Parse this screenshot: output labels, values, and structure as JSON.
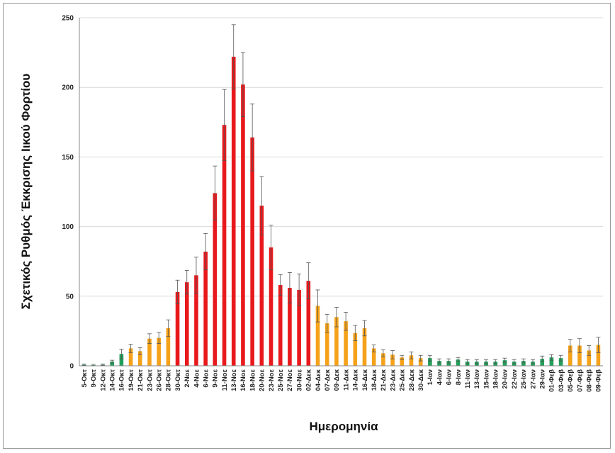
{
  "chart_data": {
    "type": "bar",
    "title": "",
    "xlabel": "Ημερομηνία",
    "ylabel": "Σχετικός Ρυθμός Έκκρισης Ιικού Φορτίου",
    "ylim": [
      0,
      250
    ],
    "yticks": [
      0,
      50,
      100,
      150,
      200,
      250
    ],
    "grid": true,
    "legend": "none",
    "colors": {
      "low": "#21a05a",
      "medium": "#f5a21b",
      "high": "#e8191c",
      "error_bar": "#555555",
      "grid": "#d9d9d9"
    },
    "categories": [
      "5-Οκτ",
      "9-Οκτ",
      "12-Οκτ",
      "14-Οκτ",
      "16-Οκτ",
      "19-Οκτ",
      "21-Οκτ",
      "23-Οκτ",
      "26-Οκτ",
      "28-Οκτ",
      "30-Οκτ",
      "2-Νοε",
      "4-Νοε",
      "6-Νοε",
      "9-Νοε",
      "11-Νοε",
      "13-Νοε",
      "16-Νοε",
      "18-Νοε",
      "20-Νοε",
      "23-Νοε",
      "25-Νοε",
      "27-Νοε",
      "30-Νοε",
      "02-Δεκ",
      "04-Δεκ",
      "07-Δεκ",
      "09-Δεκ",
      "11-Δεκ",
      "14-Δεκ",
      "16-Δεκ",
      "18-Δεκ",
      "21-Δεκ",
      "23-Δεκ",
      "25-Δεκ",
      "28-Δεκ",
      "30-Δεκ",
      "1-Ιαν",
      "4-Ιαν",
      "6-Ιαν",
      "8-Ιαν",
      "11-Ιαν",
      "13-Ιαν",
      "15-Ιαν",
      "18-Ιαν",
      "20-Ιαν",
      "22-Ιαν",
      "25-Ιαν",
      "27-Ιαν",
      "29-Ιαν",
      "01-Φεβ",
      "03-Φεβ",
      "05-Φεβ",
      "07-Φεβ",
      "08-Φεβ",
      "09-Φεβ"
    ],
    "values": [
      0.8,
      0.5,
      0.8,
      3,
      8.5,
      12.5,
      10.5,
      19.5,
      20,
      27,
      53,
      60,
      65,
      82,
      124,
      173,
      222,
      202,
      164,
      115,
      85,
      58,
      56,
      54.5,
      61,
      43,
      30.5,
      35,
      32,
      23.5,
      27,
      12.5,
      9,
      8,
      6,
      7.5,
      5.5,
      5.5,
      3.5,
      3.5,
      4.5,
      3,
      3,
      3,
      3,
      4,
      3,
      3.5,
      3,
      5,
      6,
      5.5,
      14.5,
      14.5,
      11,
      15
    ],
    "errors": [
      0.5,
      0.5,
      0.5,
      1,
      3.5,
      3,
      2.5,
      3.5,
      4,
      6,
      8.5,
      8.5,
      13,
      13,
      19.5,
      25.5,
      23,
      23,
      24,
      21,
      16,
      7.5,
      11,
      11.5,
      13,
      11.5,
      6.5,
      7,
      6.5,
      5.5,
      5.5,
      2.5,
      2.5,
      3,
      1.5,
      2.5,
      2,
      2,
      1.5,
      1.5,
      1.5,
      1.5,
      1.5,
      1.5,
      1.5,
      1.5,
      1.5,
      1.5,
      1.5,
      2,
      2,
      2,
      4.5,
      5,
      3.5,
      5.5
    ],
    "color_class": [
      "low",
      "low",
      "low",
      "low",
      "low",
      "medium",
      "medium",
      "medium",
      "medium",
      "medium",
      "high",
      "high",
      "high",
      "high",
      "high",
      "high",
      "high",
      "high",
      "high",
      "high",
      "high",
      "high",
      "high",
      "high",
      "high",
      "medium",
      "medium",
      "medium",
      "medium",
      "medium",
      "medium",
      "medium",
      "medium",
      "medium",
      "medium",
      "medium",
      "medium",
      "low",
      "low",
      "low",
      "low",
      "low",
      "low",
      "low",
      "low",
      "low",
      "low",
      "low",
      "low",
      "low",
      "low",
      "low",
      "medium",
      "medium",
      "medium",
      "medium"
    ]
  }
}
